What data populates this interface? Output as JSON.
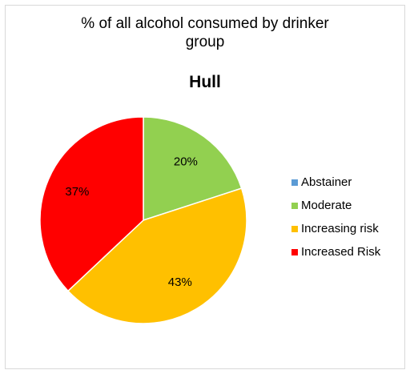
{
  "chart_data": {
    "type": "pie",
    "title_lines": [
      "% of all alcohol consumed  by drinker",
      "group"
    ],
    "subtitle": "Hull",
    "categories": [
      "Abstainer",
      "Moderate",
      "Increasing risk",
      "Increased Risk"
    ],
    "values": [
      0,
      20,
      43,
      37
    ],
    "data_labels": [
      "",
      "20%",
      "43%",
      "37%"
    ],
    "colors": [
      "#5b9bd5",
      "#92d050",
      "#ffc000",
      "#ff0000"
    ],
    "start_angle_deg": 0,
    "direction": "clockwise",
    "legend_position": "right"
  }
}
